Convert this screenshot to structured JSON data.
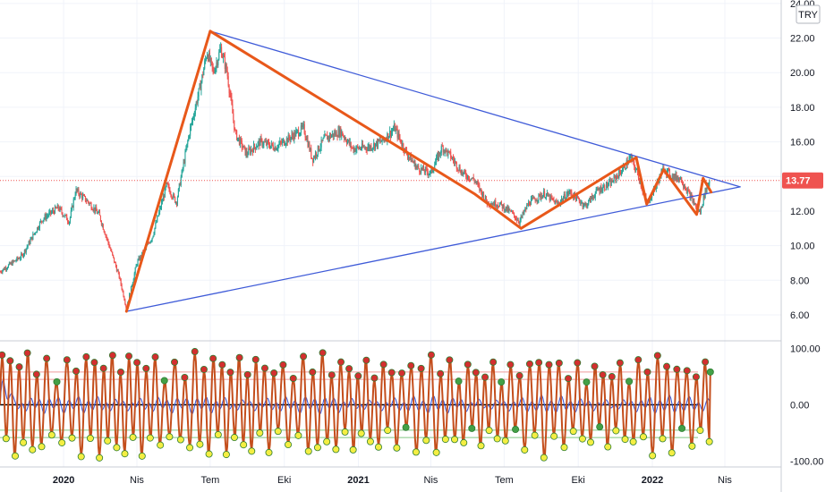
{
  "chart_data": [
    {
      "type": "candlestick",
      "currency": "TRY",
      "y_ticks": [
        "24.00",
        "22.00",
        "20.00",
        "18.00",
        "16.00",
        "14.00",
        "12.00",
        "10.00",
        "8.00",
        "6.00"
      ],
      "ylim": [
        4.5,
        24.2
      ],
      "last_price": "13.77",
      "x_ticks": [
        "2020",
        "Nis",
        "Tem",
        "Eki",
        "2021",
        "Nis",
        "Tem",
        "Eki",
        "2022",
        "Nis"
      ],
      "x_tick_dates": [
        "2020-01-01",
        "2020-04-01",
        "2020-07-01",
        "2020-10-01",
        "2021-01-01",
        "2021-04-01",
        "2021-07-01",
        "2021-10-01",
        "2022-01-01",
        "2022-04-01"
      ],
      "x_range": [
        "2019-10-14",
        "2022-06-10"
      ],
      "price_path": [
        [
          "2019-10-14",
          8.5
        ],
        [
          "2019-11-10",
          9.4
        ],
        [
          "2019-12-05",
          11.5
        ],
        [
          "2019-12-25",
          12.2
        ],
        [
          "2020-01-08",
          11.4
        ],
        [
          "2020-01-16",
          13.2
        ],
        [
          "2020-02-01",
          12.5
        ],
        [
          "2020-02-14",
          11.8
        ],
        [
          "2020-03-01",
          9.5
        ],
        [
          "2020-03-10",
          8.2
        ],
        [
          "2020-03-19",
          6.4
        ],
        [
          "2020-04-01",
          9.0
        ],
        [
          "2020-04-20",
          10.5
        ],
        [
          "2020-05-08",
          13.5
        ],
        [
          "2020-05-20",
          12.5
        ],
        [
          "2020-06-05",
          16.5
        ],
        [
          "2020-06-20",
          19.5
        ],
        [
          "2020-06-27",
          21.2
        ],
        [
          "2020-07-05",
          20.0
        ],
        [
          "2020-07-14",
          21.4
        ],
        [
          "2020-07-22",
          20.0
        ],
        [
          "2020-08-01",
          16.5
        ],
        [
          "2020-08-15",
          15.3
        ],
        [
          "2020-09-01",
          16.0
        ],
        [
          "2020-09-20",
          15.7
        ],
        [
          "2020-10-10",
          16.3
        ],
        [
          "2020-10-25",
          16.8
        ],
        [
          "2020-11-05",
          15.0
        ],
        [
          "2020-11-20",
          16.2
        ],
        [
          "2020-12-10",
          16.6
        ],
        [
          "2020-12-25",
          15.6
        ],
        [
          "2021-01-15",
          15.7
        ],
        [
          "2021-02-01",
          16.1
        ],
        [
          "2021-02-15",
          16.8
        ],
        [
          "2021-03-01",
          15.4
        ],
        [
          "2021-03-15",
          14.5
        ],
        [
          "2021-04-01",
          14.2
        ],
        [
          "2021-04-15",
          15.7
        ],
        [
          "2021-04-25",
          15.2
        ],
        [
          "2021-05-10",
          14.2
        ],
        [
          "2021-05-25",
          13.8
        ],
        [
          "2021-06-10",
          12.5
        ],
        [
          "2021-06-25",
          12.4
        ],
        [
          "2021-07-10",
          11.9
        ],
        [
          "2021-07-20",
          11.4
        ],
        [
          "2021-08-01",
          12.5
        ],
        [
          "2021-08-20",
          13.0
        ],
        [
          "2021-09-05",
          12.4
        ],
        [
          "2021-09-20",
          13.1
        ],
        [
          "2021-10-10",
          12.3
        ],
        [
          "2021-10-25",
          13.2
        ],
        [
          "2021-11-10",
          13.6
        ],
        [
          "2021-11-25",
          14.4
        ],
        [
          "2021-12-05",
          15.1
        ],
        [
          "2021-12-15",
          14.0
        ],
        [
          "2021-12-25",
          12.4
        ],
        [
          "2022-01-05",
          13.4
        ],
        [
          "2022-01-15",
          14.5
        ],
        [
          "2022-01-25",
          14.0
        ],
        [
          "2022-02-05",
          13.9
        ],
        [
          "2022-02-20",
          12.6
        ],
        [
          "2022-03-01",
          11.9
        ],
        [
          "2022-03-08",
          13.2
        ],
        [
          "2022-03-13",
          13.77
        ]
      ],
      "zigzag": [
        [
          "2020-03-19",
          6.2
        ],
        [
          "2020-07-01",
          22.4
        ],
        [
          "2021-05-25",
          13.0
        ],
        [
          "2021-07-22",
          11.0
        ],
        [
          "2021-12-12",
          15.1
        ],
        [
          "2021-12-25",
          12.4
        ],
        [
          "2022-01-15",
          14.4
        ],
        [
          "2022-02-25",
          11.8
        ],
        [
          "2022-03-05",
          13.9
        ],
        [
          "2022-03-15",
          13.1
        ]
      ],
      "trendline_upper": [
        [
          "2020-07-01",
          22.4
        ],
        [
          "2022-04-20",
          13.4
        ]
      ],
      "trendline_lower": [
        [
          "2020-03-19",
          6.2
        ],
        [
          "2022-04-20",
          13.4
        ]
      ],
      "last_price_line": 13.77,
      "colors": {
        "up": "#26a69a",
        "down": "#ef5350",
        "zigzag": "#e8581a",
        "trend": "#3f5bd8",
        "last_price": "#ef5350"
      }
    },
    {
      "type": "line",
      "y_ticks": [
        "100.00",
        "0.00",
        "-100.00"
      ],
      "ylim": [
        -110,
        110
      ],
      "levels": [
        {
          "value": 58,
          "color": "#ef9a9a"
        },
        {
          "value": 45,
          "color": "#ef9a9a"
        },
        {
          "value": 0,
          "color": "#000000"
        },
        {
          "value": -45,
          "color": "#81c784"
        },
        {
          "value": -58,
          "color": "#81c784"
        }
      ],
      "oscillator_wave": {
        "start": "2019-10-14",
        "end": "2022-03-14",
        "cycles": 78,
        "amplitude": 68
      },
      "last_value": 58,
      "colors": {
        "oscillator": "#c44e1c",
        "signal": "#3f5bd8",
        "overbought_dot": "#d32f2f",
        "mid_dot": "#43a047",
        "oversold_dot": "#f4ee42"
      }
    }
  ]
}
